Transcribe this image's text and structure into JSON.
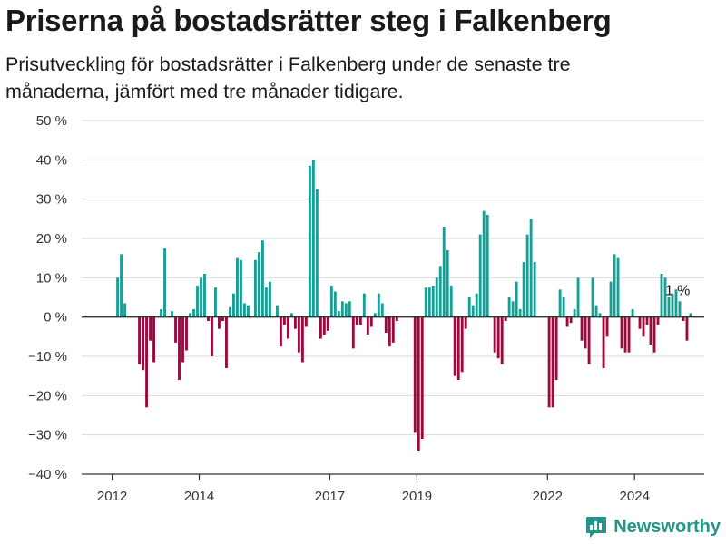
{
  "chart_data": {
    "type": "bar",
    "title": "Priserna på bostadsrätter steg i Falkenberg",
    "subtitle": "Prisutveckling för bostadsrätter i Falkenberg under de senaste tre månaderna, jämfört med tre månader tidigare.",
    "y_tick_labels": [
      "50 %",
      "40 %",
      "30 %",
      "20 %",
      "10 %",
      "0 %",
      "−10 %",
      "−20 %",
      "−30 %",
      "−40 %"
    ],
    "y_ticks": [
      50,
      40,
      30,
      20,
      10,
      0,
      -10,
      -20,
      -30,
      -40
    ],
    "ylim": [
      -40,
      50
    ],
    "x_tick_labels": [
      "2012",
      "2014",
      "2017",
      "2019",
      "2022",
      "2024"
    ],
    "x_ticks": [
      2012.0,
      2014.0,
      2017.0,
      2019.0,
      2022.0,
      2024.0
    ],
    "xlim": [
      2011.3,
      2025.6
    ],
    "grid": true,
    "annotation": {
      "text": "1 %",
      "x": 2024.7,
      "y": 1
    },
    "colors": {
      "positive": "#1a9e94",
      "negative": "#9b0a3c",
      "grid": "#d9d9d9",
      "axis": "#333333"
    },
    "series": [
      {
        "x_start": 2012.125,
        "x_step": 0.0833,
        "values": [
          10,
          16,
          3.5,
          0,
          0,
          0,
          -12,
          -13.5,
          -23,
          -6,
          -11.5,
          0,
          2,
          17.5,
          0,
          1.5,
          -6.5,
          -16,
          -11.5,
          -8.5,
          1,
          2,
          8,
          10,
          11,
          -1,
          -10,
          7.5,
          -3,
          -1,
          -13,
          2.5,
          6,
          15,
          14.5,
          3.5,
          3,
          0,
          14.5,
          16.5,
          19.5,
          7.5,
          9,
          0,
          3,
          -7.5,
          -2,
          -5.5,
          1,
          -3,
          -9,
          -11.5,
          -2.5,
          38.5,
          40,
          32.5,
          -5.5,
          -4.5,
          -3.5,
          8,
          6.5,
          1.5,
          4,
          3.5,
          4,
          -8,
          -2,
          -2,
          6,
          -4.5,
          -2.5,
          1,
          6,
          3.5,
          -4,
          -7.5,
          -6.5,
          -1,
          0,
          0,
          0,
          0,
          -29.5,
          -34,
          -31,
          7.5,
          7.5,
          8,
          10,
          13,
          23,
          17,
          8,
          -15,
          -16,
          -14,
          -3,
          5,
          3,
          6,
          21,
          27,
          26,
          0,
          -9,
          -10.5,
          -12,
          -1,
          5,
          4,
          9,
          2,
          14,
          21,
          25,
          14,
          0,
          0,
          0,
          -23,
          -23,
          -16,
          7,
          5,
          -2.5,
          -1.5,
          2,
          10,
          -6,
          -8,
          -12,
          10,
          3,
          1,
          -13,
          -5,
          9,
          16,
          15,
          -8,
          -9,
          -9,
          2,
          0,
          -3,
          -5,
          -2,
          -7,
          -9,
          -2,
          11,
          10,
          5,
          6,
          7,
          4,
          -1,
          -6,
          1
        ]
      }
    ]
  },
  "branding": {
    "logo_text": "Newsworthy",
    "logo_icon": "bar-chart-icon"
  }
}
